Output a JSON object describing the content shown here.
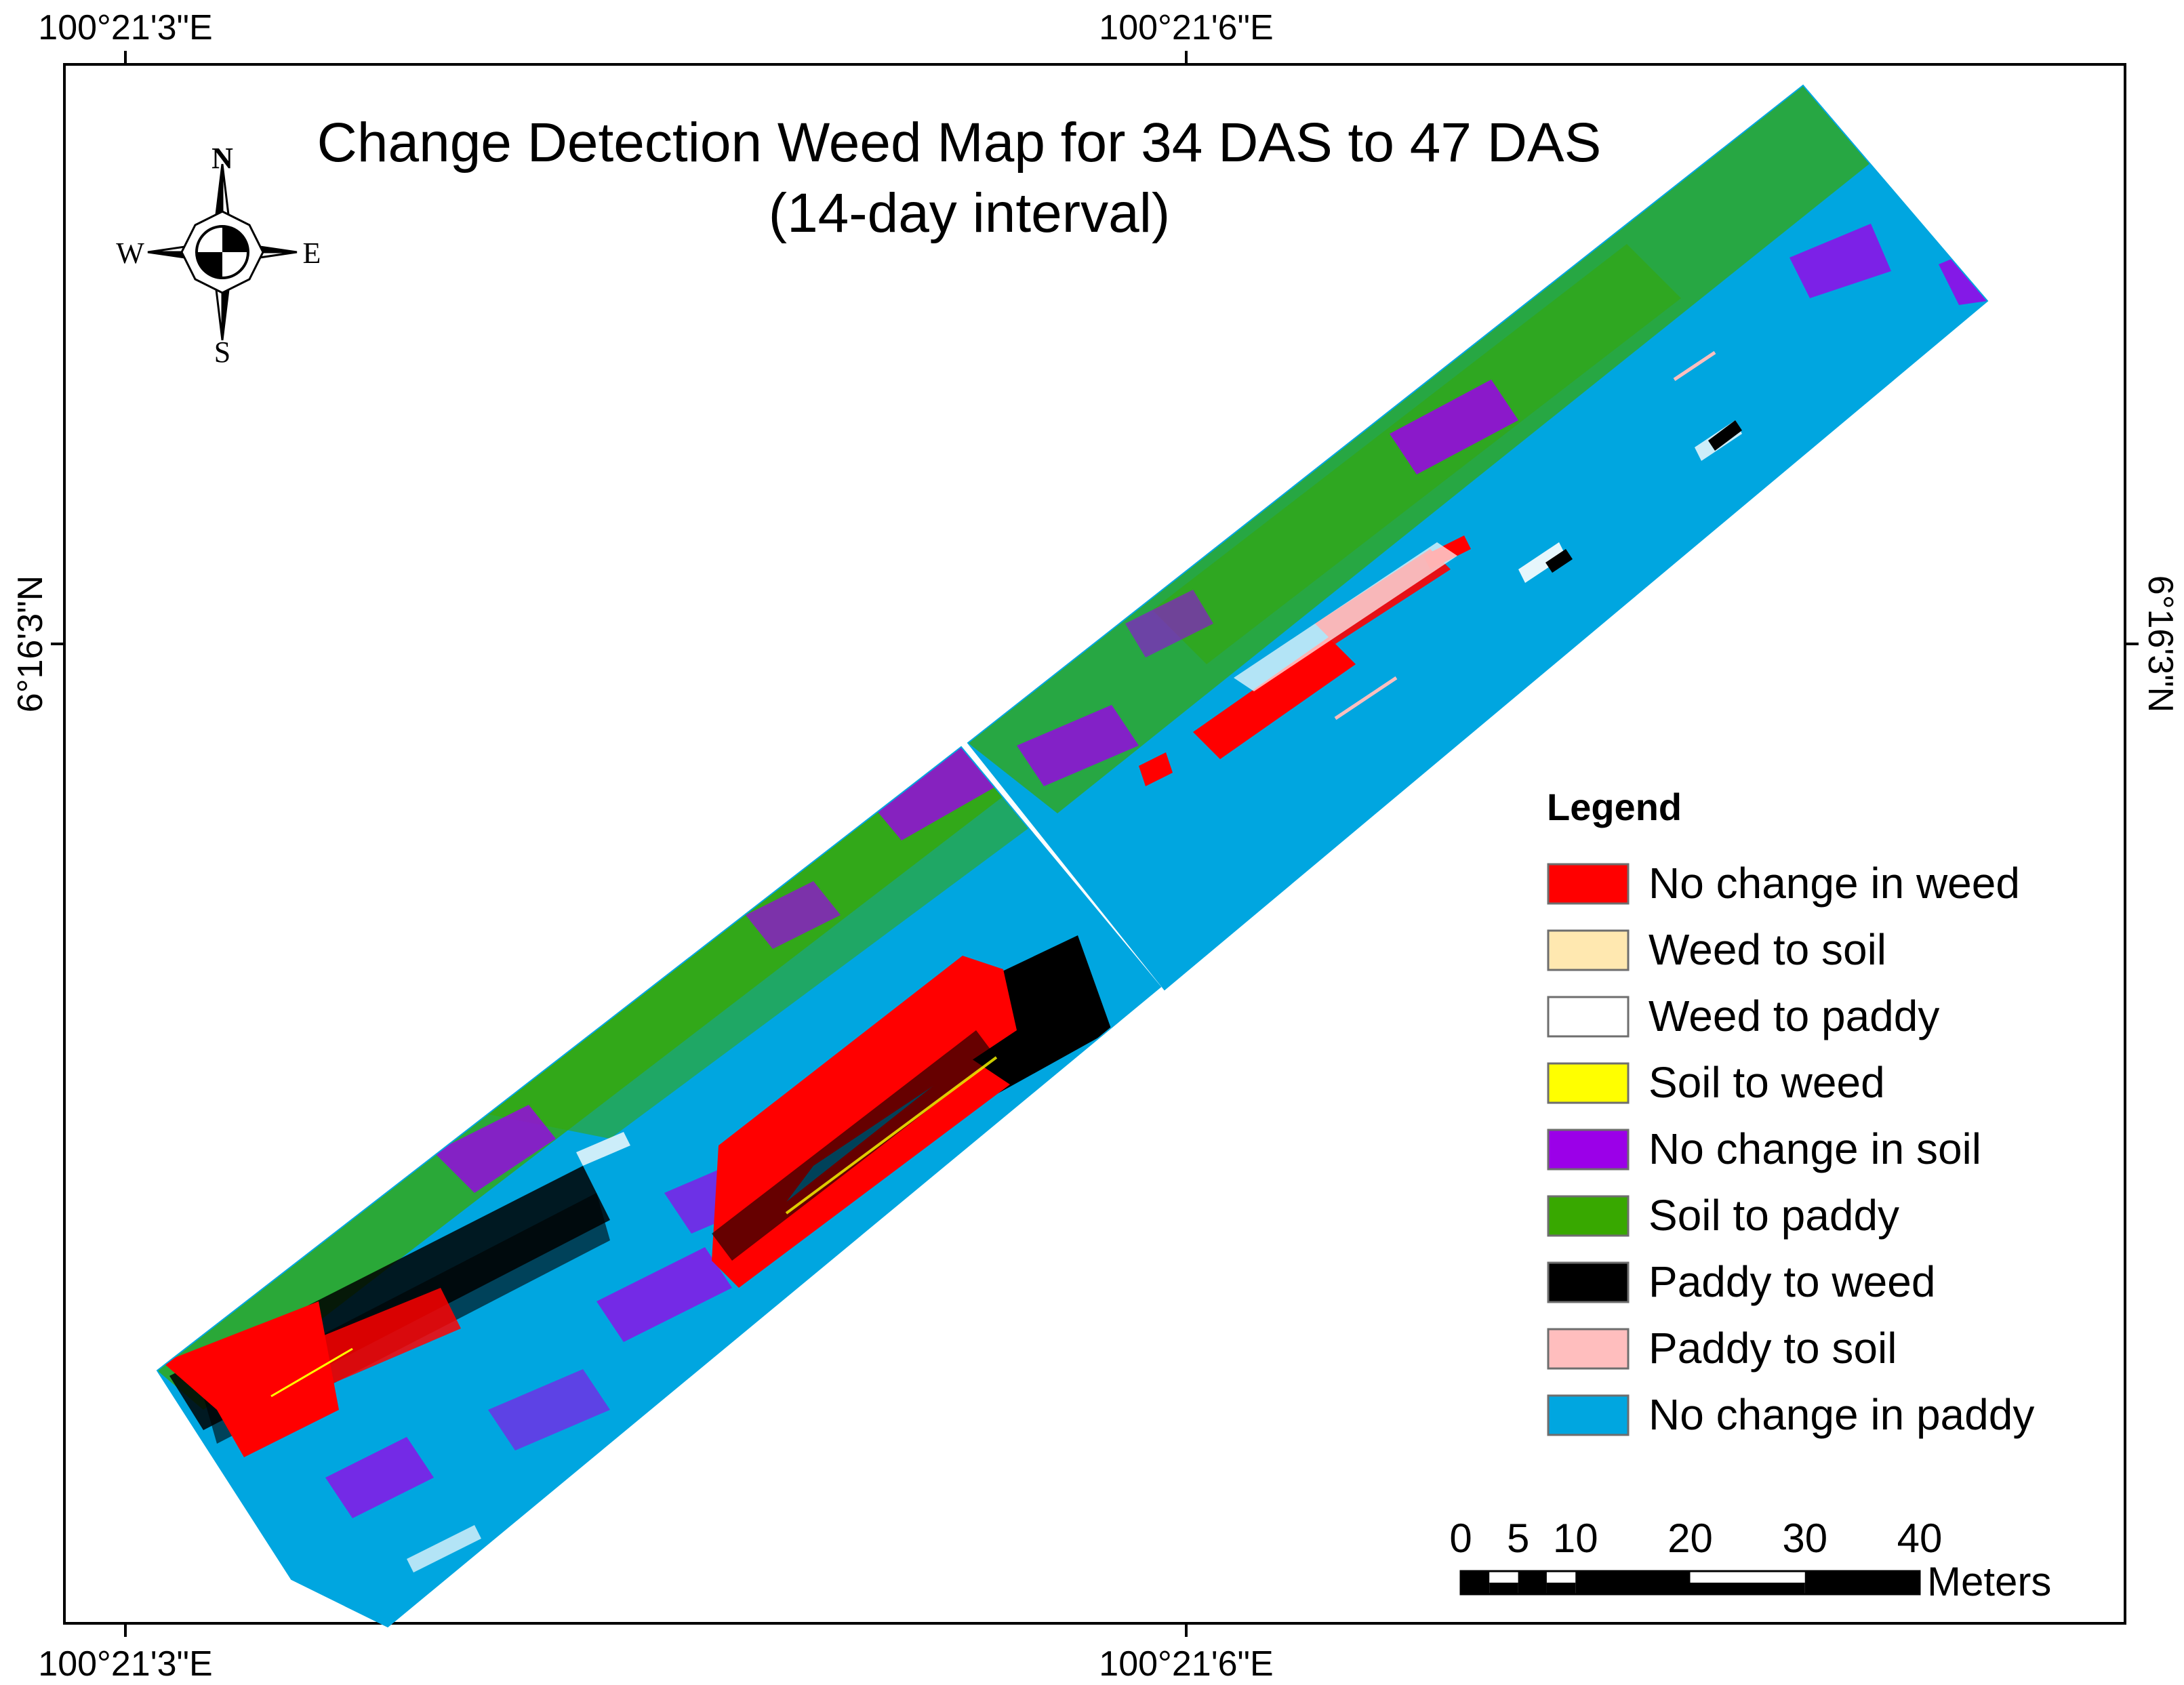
{
  "map": {
    "title_line1": "Change Detection Weed Map for 34 DAS to 47 DAS",
    "title_line2": "(14-day interval)"
  },
  "graticule": {
    "x_labels": [
      "100°21'3\"E",
      "100°21'6\"E"
    ],
    "y_label": "6°16'3\"N"
  },
  "north_arrow": {
    "n": "N",
    "s": "S",
    "e": "E",
    "w": "W"
  },
  "legend": {
    "title": "Legend",
    "items": [
      {
        "label": "No change in weed",
        "color": "#ff0000"
      },
      {
        "label": "Weed to soil",
        "color": "#ffe8b0"
      },
      {
        "label": "Weed to paddy",
        "color": "#ffffff"
      },
      {
        "label": "Soil to weed",
        "color": "#ffff00"
      },
      {
        "label": "No change in soil",
        "color": "#9b00e8"
      },
      {
        "label": "Soil to paddy",
        "color": "#38a800"
      },
      {
        "label": "Paddy to weed",
        "color": "#000000"
      },
      {
        "label": "Paddy to soil",
        "color": "#ffbebe"
      },
      {
        "label": "No change in paddy",
        "color": "#00a6e0"
      }
    ]
  },
  "scale_bar": {
    "ticks": [
      "0",
      "5",
      "10",
      "20",
      "30",
      "40"
    ],
    "unit": "Meters"
  }
}
